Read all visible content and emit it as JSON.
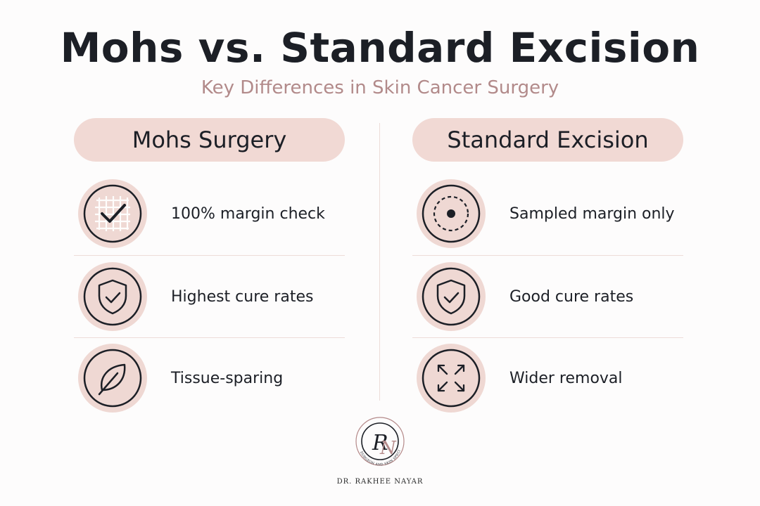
{
  "title": "Mohs vs. Standard Excision",
  "subtitle": "Key Differences in Skin Cancer Surgery",
  "left": {
    "heading": "Mohs Surgery",
    "items": [
      {
        "label": "100% margin check",
        "icon": "grid-check-icon"
      },
      {
        "label": "Highest cure rates",
        "icon": "shield-check-icon"
      },
      {
        "label": "Tissue-sparing",
        "icon": "leaf-icon"
      }
    ]
  },
  "right": {
    "heading": "Standard Excision",
    "items": [
      {
        "label": "Sampled margin only",
        "icon": "dashed-target-icon"
      },
      {
        "label": "Good cure rates",
        "icon": "shield-check-icon"
      },
      {
        "label": "Wider removal",
        "icon": "expand-arrows-icon"
      }
    ]
  },
  "logo": {
    "monogram": "RN",
    "ring_text": "MOHS SURGEON AND SKIN SPECIALIST",
    "name": "DR. RAKHEE NAYAR"
  },
  "colors": {
    "pill": "#f1d9d4",
    "icon_circle": "#efd8d3",
    "subtitle": "#b28a8a",
    "text": "#1c1f26"
  }
}
